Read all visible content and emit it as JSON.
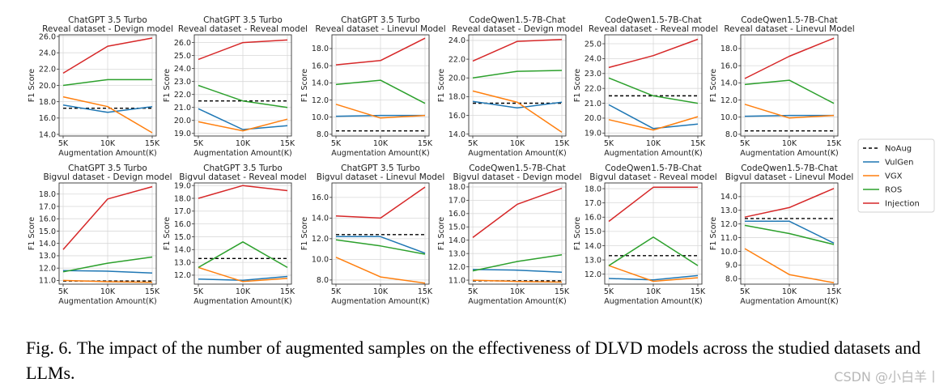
{
  "figure": {
    "legend": [
      {
        "name": "NoAug",
        "color": "#000000",
        "dash": true
      },
      {
        "name": "VulGen",
        "color": "#1f77b4"
      },
      {
        "name": "VGX",
        "color": "#ff7f0e"
      },
      {
        "name": "ROS",
        "color": "#2ca02c"
      },
      {
        "name": "Injection",
        "color": "#d62728"
      }
    ],
    "caption": {
      "label": "Fig. 6.",
      "text": "The impact of the number of augmented samples on the effectiveness of DLVD models across the studied datasets and LLMs."
    },
    "watermark": "CSDN @小白羊丨"
  },
  "chart_data": [
    {
      "type": "line",
      "title": "ChatGPT 3.5 Turbo",
      "subtitle": "Reveal dataset - Devign model",
      "xlabel": "Augmentation Amount(K)",
      "ylabel": "F1 Score",
      "categories": [
        "5K",
        "10K",
        "15K"
      ],
      "ylim": [
        13.8,
        26.2
      ],
      "yticks": [
        "14.0",
        "16.0",
        "18.0",
        "20.0",
        "22.0",
        "24.0",
        "26.0"
      ],
      "noaug": 17.2,
      "series": [
        {
          "name": "VulGen",
          "values": [
            17.6,
            16.7,
            17.4
          ]
        },
        {
          "name": "VGX",
          "values": [
            18.6,
            17.4,
            14.2
          ]
        },
        {
          "name": "ROS",
          "values": [
            20.0,
            20.7,
            20.7
          ]
        },
        {
          "name": "Injection",
          "values": [
            21.5,
            24.8,
            25.8
          ]
        }
      ]
    },
    {
      "type": "line",
      "title": "ChatGPT 3.5 Turbo",
      "subtitle": "Reveal dataset - Reveal model",
      "xlabel": "Augmentation Amount(K)",
      "ylabel": "F1 Score",
      "categories": [
        "5K",
        "10K",
        "15K"
      ],
      "ylim": [
        18.8,
        26.6
      ],
      "yticks": [
        "19.0",
        "20.0",
        "21.0",
        "22.0",
        "23.0",
        "24.0",
        "25.0",
        "26.0"
      ],
      "noaug": 21.5,
      "series": [
        {
          "name": "VulGen",
          "values": [
            20.9,
            19.3,
            19.6
          ]
        },
        {
          "name": "VGX",
          "values": [
            19.9,
            19.2,
            20.1
          ]
        },
        {
          "name": "ROS",
          "values": [
            22.7,
            21.5,
            21.0
          ]
        },
        {
          "name": "Injection",
          "values": [
            24.7,
            26.0,
            26.2
          ]
        }
      ]
    },
    {
      "type": "line",
      "title": "ChatGPT 3.5 Turbo",
      "subtitle": "Reveal dataset - Linevul Model",
      "xlabel": "Augmentation Amount(K)",
      "ylabel": "F1 Score",
      "categories": [
        "5K",
        "10K",
        "15K"
      ],
      "ylim": [
        7.8,
        19.6
      ],
      "yticks": [
        "8.0",
        "10.0",
        "12.0",
        "14.0",
        "16.0",
        "18.0"
      ],
      "noaug": 8.4,
      "series": [
        {
          "name": "VulGen",
          "values": [
            10.1,
            10.2,
            10.2
          ]
        },
        {
          "name": "VGX",
          "values": [
            11.5,
            9.9,
            10.2
          ]
        },
        {
          "name": "ROS",
          "values": [
            13.8,
            14.3,
            11.6
          ]
        },
        {
          "name": "Injection",
          "values": [
            16.1,
            16.6,
            19.2
          ]
        }
      ]
    },
    {
      "type": "line",
      "title": "CodeQwen1.5-7B-Chat",
      "subtitle": "Reveal dataset - Devign model",
      "xlabel": "Augmentation Amount(K)",
      "ylabel": "F1 Score",
      "categories": [
        "5K",
        "10K",
        "15K"
      ],
      "ylim": [
        13.8,
        24.6
      ],
      "yticks": [
        "14.0",
        "16.0",
        "18.0",
        "20.0",
        "22.0",
        "24.0"
      ],
      "noaug": 17.3,
      "series": [
        {
          "name": "VulGen",
          "values": [
            17.5,
            16.8,
            17.4
          ]
        },
        {
          "name": "VGX",
          "values": [
            18.6,
            17.4,
            14.2
          ]
        },
        {
          "name": "ROS",
          "values": [
            20.0,
            20.7,
            20.8
          ]
        },
        {
          "name": "Injection",
          "values": [
            21.8,
            23.9,
            24.1
          ]
        }
      ]
    },
    {
      "type": "line",
      "title": "CodeQwen1.5-7B-Chat",
      "subtitle": "Reveal dataset - Reveal model",
      "xlabel": "Augmentation Amount(K)",
      "ylabel": "F1 Score",
      "categories": [
        "5K",
        "10K",
        "15K"
      ],
      "ylim": [
        18.8,
        25.6
      ],
      "yticks": [
        "19.0",
        "20.0",
        "21.0",
        "22.0",
        "23.0",
        "24.0",
        "25.0"
      ],
      "noaug": 21.5,
      "series": [
        {
          "name": "VulGen",
          "values": [
            20.9,
            19.3,
            19.6
          ]
        },
        {
          "name": "VGX",
          "values": [
            19.9,
            19.2,
            20.1
          ]
        },
        {
          "name": "ROS",
          "values": [
            22.7,
            21.5,
            21.0
          ]
        },
        {
          "name": "Injection",
          "values": [
            23.4,
            24.2,
            25.3
          ]
        }
      ]
    },
    {
      "type": "line",
      "title": "CodeQwen1.5-7B-Chat",
      "subtitle": "Reveal dataset - Linevul Model",
      "xlabel": "Augmentation Amount(K)",
      "ylabel": "F1 Score",
      "categories": [
        "5K",
        "10K",
        "15K"
      ],
      "ylim": [
        7.8,
        19.6
      ],
      "yticks": [
        "8.0",
        "10.0",
        "12.0",
        "14.0",
        "16.0",
        "18.0"
      ],
      "noaug": 8.4,
      "series": [
        {
          "name": "VulGen",
          "values": [
            10.1,
            10.2,
            10.2
          ]
        },
        {
          "name": "VGX",
          "values": [
            11.5,
            9.9,
            10.2
          ]
        },
        {
          "name": "ROS",
          "values": [
            13.8,
            14.3,
            11.6
          ]
        },
        {
          "name": "Injection",
          "values": [
            14.5,
            17.1,
            19.2
          ]
        }
      ]
    },
    {
      "type": "line",
      "title": "ChatGPT 3.5 Turbo",
      "subtitle": "Bigvul dataset - Devign model",
      "xlabel": "Augmentation Amount(K)",
      "ylabel": "F1 Score",
      "categories": [
        "5K",
        "10K",
        "15K"
      ],
      "ylim": [
        10.7,
        18.9
      ],
      "yticks": [
        "11.0",
        "12.0",
        "13.0",
        "14.0",
        "15.0",
        "16.0",
        "17.0",
        "18.0"
      ],
      "noaug": 10.95,
      "series": [
        {
          "name": "VulGen",
          "values": [
            11.8,
            11.75,
            11.6
          ]
        },
        {
          "name": "VGX",
          "values": [
            11.0,
            10.9,
            10.85
          ]
        },
        {
          "name": "ROS",
          "values": [
            11.7,
            12.4,
            12.9
          ]
        },
        {
          "name": "Injection",
          "values": [
            13.5,
            17.6,
            18.6
          ]
        }
      ]
    },
    {
      "type": "line",
      "title": "ChatGPT 3.5 Turbo",
      "subtitle": "Bigvul dataset - Reveal model",
      "xlabel": "Augmentation Amount(K)",
      "ylabel": "F1 Score",
      "categories": [
        "5K",
        "10K",
        "15K"
      ],
      "ylim": [
        11.3,
        19.2
      ],
      "yticks": [
        "12.0",
        "13.0",
        "14.0",
        "15.0",
        "16.0",
        "17.0",
        "18.0",
        "19.0"
      ],
      "noaug": 13.3,
      "series": [
        {
          "name": "VulGen",
          "values": [
            11.7,
            11.6,
            11.9
          ]
        },
        {
          "name": "VGX",
          "values": [
            12.6,
            11.5,
            11.75
          ]
        },
        {
          "name": "ROS",
          "values": [
            12.6,
            14.6,
            12.6
          ]
        },
        {
          "name": "Injection",
          "values": [
            18.0,
            19.0,
            18.6
          ]
        }
      ]
    },
    {
      "type": "line",
      "title": "ChatGPT 3.5 Turbo",
      "subtitle": "Bigvul dataset - Linevul Model",
      "xlabel": "Augmentation Amount(K)",
      "ylabel": "F1 Score",
      "categories": [
        "5K",
        "10K",
        "15K"
      ],
      "ylim": [
        7.6,
        17.4
      ],
      "yticks": [
        "8.0",
        "10.0",
        "12.0",
        "14.0",
        "16.0"
      ],
      "noaug": 12.4,
      "series": [
        {
          "name": "VulGen",
          "values": [
            12.2,
            12.2,
            10.6
          ]
        },
        {
          "name": "VGX",
          "values": [
            10.2,
            8.3,
            7.7
          ]
        },
        {
          "name": "ROS",
          "values": [
            11.9,
            11.3,
            10.5
          ]
        },
        {
          "name": "Injection",
          "values": [
            14.2,
            14.0,
            17.0
          ]
        }
      ]
    },
    {
      "type": "line",
      "title": "CodeQwen1.5-7B-Chat",
      "subtitle": "Bigvul dataset - Devign model",
      "xlabel": "Augmentation Amount(K)",
      "ylabel": "F1 Score",
      "categories": [
        "5K",
        "10K",
        "15K"
      ],
      "ylim": [
        10.7,
        18.3
      ],
      "yticks": [
        "11.0",
        "12.0",
        "13.0",
        "14.0",
        "15.0",
        "16.0",
        "17.0",
        "18.0"
      ],
      "noaug": 10.95,
      "series": [
        {
          "name": "VulGen",
          "values": [
            11.8,
            11.75,
            11.6
          ]
        },
        {
          "name": "VGX",
          "values": [
            11.0,
            10.9,
            10.85
          ]
        },
        {
          "name": "ROS",
          "values": [
            11.7,
            12.4,
            12.9
          ]
        },
        {
          "name": "Injection",
          "values": [
            14.2,
            16.7,
            17.9
          ]
        }
      ]
    },
    {
      "type": "line",
      "title": "CodeQwen1.5-7B-Chat",
      "subtitle": "Bigvul dataset - Reveal model",
      "xlabel": "Augmentation Amount(K)",
      "ylabel": "F1 Score",
      "categories": [
        "5K",
        "10K",
        "15K"
      ],
      "ylim": [
        11.3,
        18.4
      ],
      "yticks": [
        "12.0",
        "13.0",
        "14.0",
        "15.0",
        "16.0",
        "17.0",
        "18.0"
      ],
      "noaug": 13.3,
      "series": [
        {
          "name": "VulGen",
          "values": [
            11.7,
            11.6,
            11.9
          ]
        },
        {
          "name": "VGX",
          "values": [
            12.6,
            11.5,
            11.75
          ]
        },
        {
          "name": "ROS",
          "values": [
            12.6,
            14.6,
            12.6
          ]
        },
        {
          "name": "Injection",
          "values": [
            15.7,
            18.1,
            18.1
          ]
        }
      ]
    },
    {
      "type": "line",
      "title": "CodeQwen1.5-7B-Chat",
      "subtitle": "Bigvul dataset - Linevul Model",
      "xlabel": "Augmentation Amount(K)",
      "ylabel": "F1 Score",
      "categories": [
        "5K",
        "10K",
        "15K"
      ],
      "ylim": [
        7.6,
        15.0
      ],
      "yticks": [
        "8.0",
        "9.0",
        "10.0",
        "11.0",
        "12.0",
        "13.0",
        "14.0"
      ],
      "noaug": 12.4,
      "series": [
        {
          "name": "VulGen",
          "values": [
            12.2,
            12.2,
            10.6
          ]
        },
        {
          "name": "VGX",
          "values": [
            10.2,
            8.3,
            7.7
          ]
        },
        {
          "name": "ROS",
          "values": [
            11.9,
            11.3,
            10.5
          ]
        },
        {
          "name": "Injection",
          "values": [
            12.5,
            13.2,
            14.6
          ]
        }
      ]
    }
  ]
}
